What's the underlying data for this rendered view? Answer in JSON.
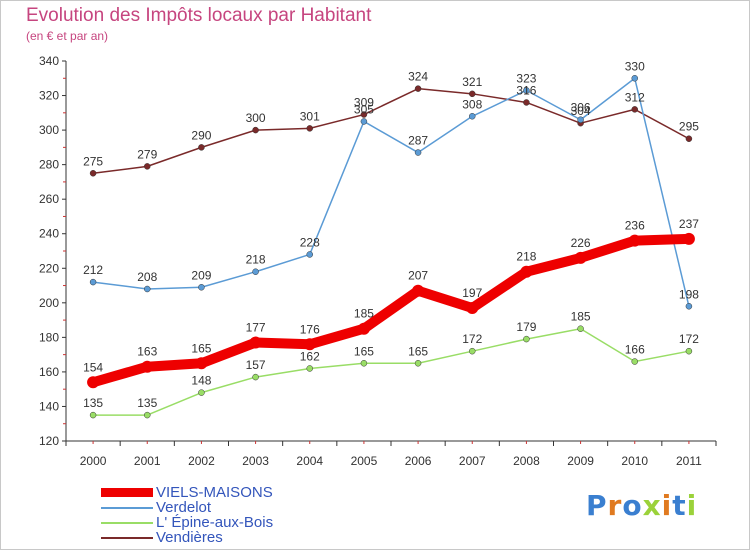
{
  "title": "Evolution des Impôts locaux par Habitant",
  "subtitle": "(en € et par an)",
  "logo": "Proxiti",
  "chart_data": {
    "type": "line",
    "x": [
      "2000",
      "2001",
      "2002",
      "2003",
      "2004",
      "2005",
      "2006",
      "2007",
      "2008",
      "2009",
      "2010",
      "2011"
    ],
    "ylim": [
      120,
      340
    ],
    "yticks": [
      120,
      140,
      160,
      180,
      200,
      220,
      240,
      260,
      280,
      300,
      320,
      340
    ],
    "grid": false,
    "legend_position": "bottom-left",
    "series": [
      {
        "name": "VIELS-MAISONS",
        "color": "#ee0000",
        "values": [
          154,
          163,
          165,
          177,
          176,
          185,
          207,
          197,
          218,
          226,
          236,
          237
        ]
      },
      {
        "name": "Verdelot",
        "color": "#5b9bd5",
        "values": [
          212,
          208,
          209,
          218,
          228,
          305,
          287,
          308,
          323,
          306,
          330,
          198
        ]
      },
      {
        "name": "L' Épine-aux-Bois",
        "color": "#99dd66",
        "values": [
          135,
          135,
          148,
          157,
          162,
          165,
          165,
          172,
          179,
          185,
          166,
          172
        ]
      },
      {
        "name": "Vendières",
        "color": "#7a2a2a",
        "values": [
          275,
          279,
          290,
          300,
          301,
          309,
          324,
          321,
          316,
          304,
          312,
          295
        ]
      }
    ]
  }
}
